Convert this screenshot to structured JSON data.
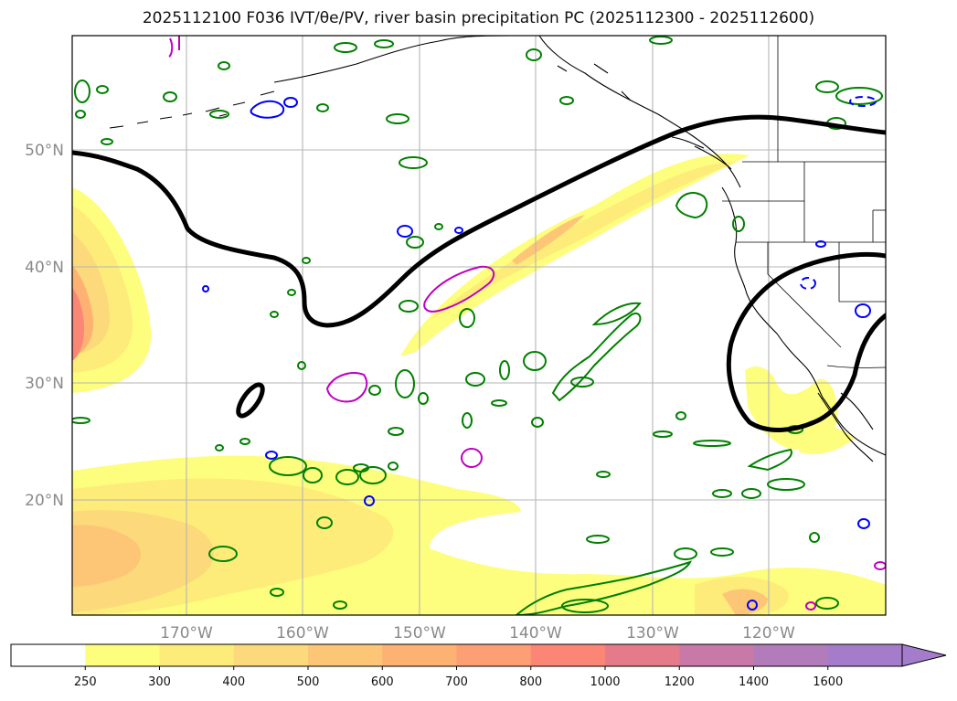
{
  "title": "2025112100 F036 IVT/θe/PV, river basin precipitation PC (2025112300 - 2025112600)",
  "map": {
    "lat_labels": [
      "50°N",
      "40°N",
      "30°N",
      "20°N"
    ],
    "lon_labels": [
      "170°W",
      "160°W",
      "150°W",
      "140°W",
      "130°W",
      "120°W"
    ]
  },
  "colorbar": {
    "ticks": [
      "250",
      "300",
      "400",
      "500",
      "600",
      "700",
      "800",
      "1000",
      "1200",
      "1400",
      "1600"
    ],
    "colors": [
      "#ffffff",
      "#fefe7e",
      "#fdec7a",
      "#fcd97a",
      "#fdc677",
      "#fdb274",
      "#fd9f74",
      "#fb8675",
      "#e57b8a",
      "#c879a8",
      "#b27cba",
      "#a47ccb"
    ]
  },
  "colors": {
    "theta_contour": "#000000",
    "green_contour": "#008000",
    "blue_contour": "#0000ff",
    "magenta_contour": "#c000c0",
    "coastline": "#000000"
  }
}
